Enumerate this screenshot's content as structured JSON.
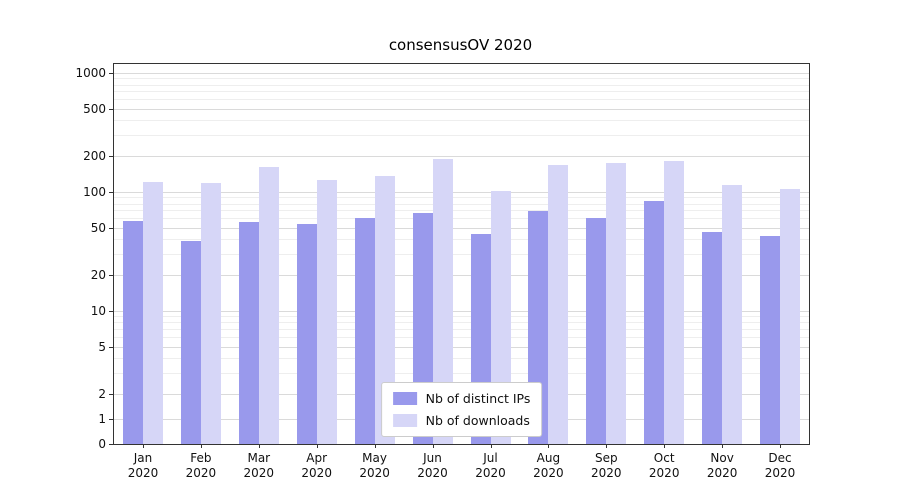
{
  "chart_data": {
    "type": "bar",
    "title": "consensusOV 2020",
    "categories": [
      "Jan 2020",
      "Feb 2020",
      "Mar 2020",
      "Apr 2020",
      "May 2020",
      "Jun 2020",
      "Jul 2020",
      "Aug 2020",
      "Sep 2020",
      "Oct 2020",
      "Nov 2020",
      "Dec 2020"
    ],
    "series": [
      {
        "name": "Nb of distinct IPs",
        "color": "#9999ec",
        "values": [
          57,
          39,
          56,
          54,
          61,
          66,
          44,
          69,
          61,
          84,
          46,
          43
        ]
      },
      {
        "name": "Nb of downloads",
        "color": "#d6d6f7",
        "values": [
          122,
          118,
          162,
          127,
          137,
          190,
          101,
          170,
          176,
          183,
          114,
          105
        ]
      }
    ],
    "y_scale": "symlog",
    "y_ticks": [
      0,
      1,
      2,
      5,
      10,
      20,
      50,
      100,
      200,
      500,
      1000
    ],
    "ylim": [
      0,
      1000
    ],
    "xlabel": "",
    "ylabel": "",
    "grid": true,
    "legend_position": "lower center",
    "colors": {
      "grid_major": "#dadada",
      "grid_minor": "#eeeeee",
      "axis": "#333333",
      "background": "#ffffff"
    }
  }
}
